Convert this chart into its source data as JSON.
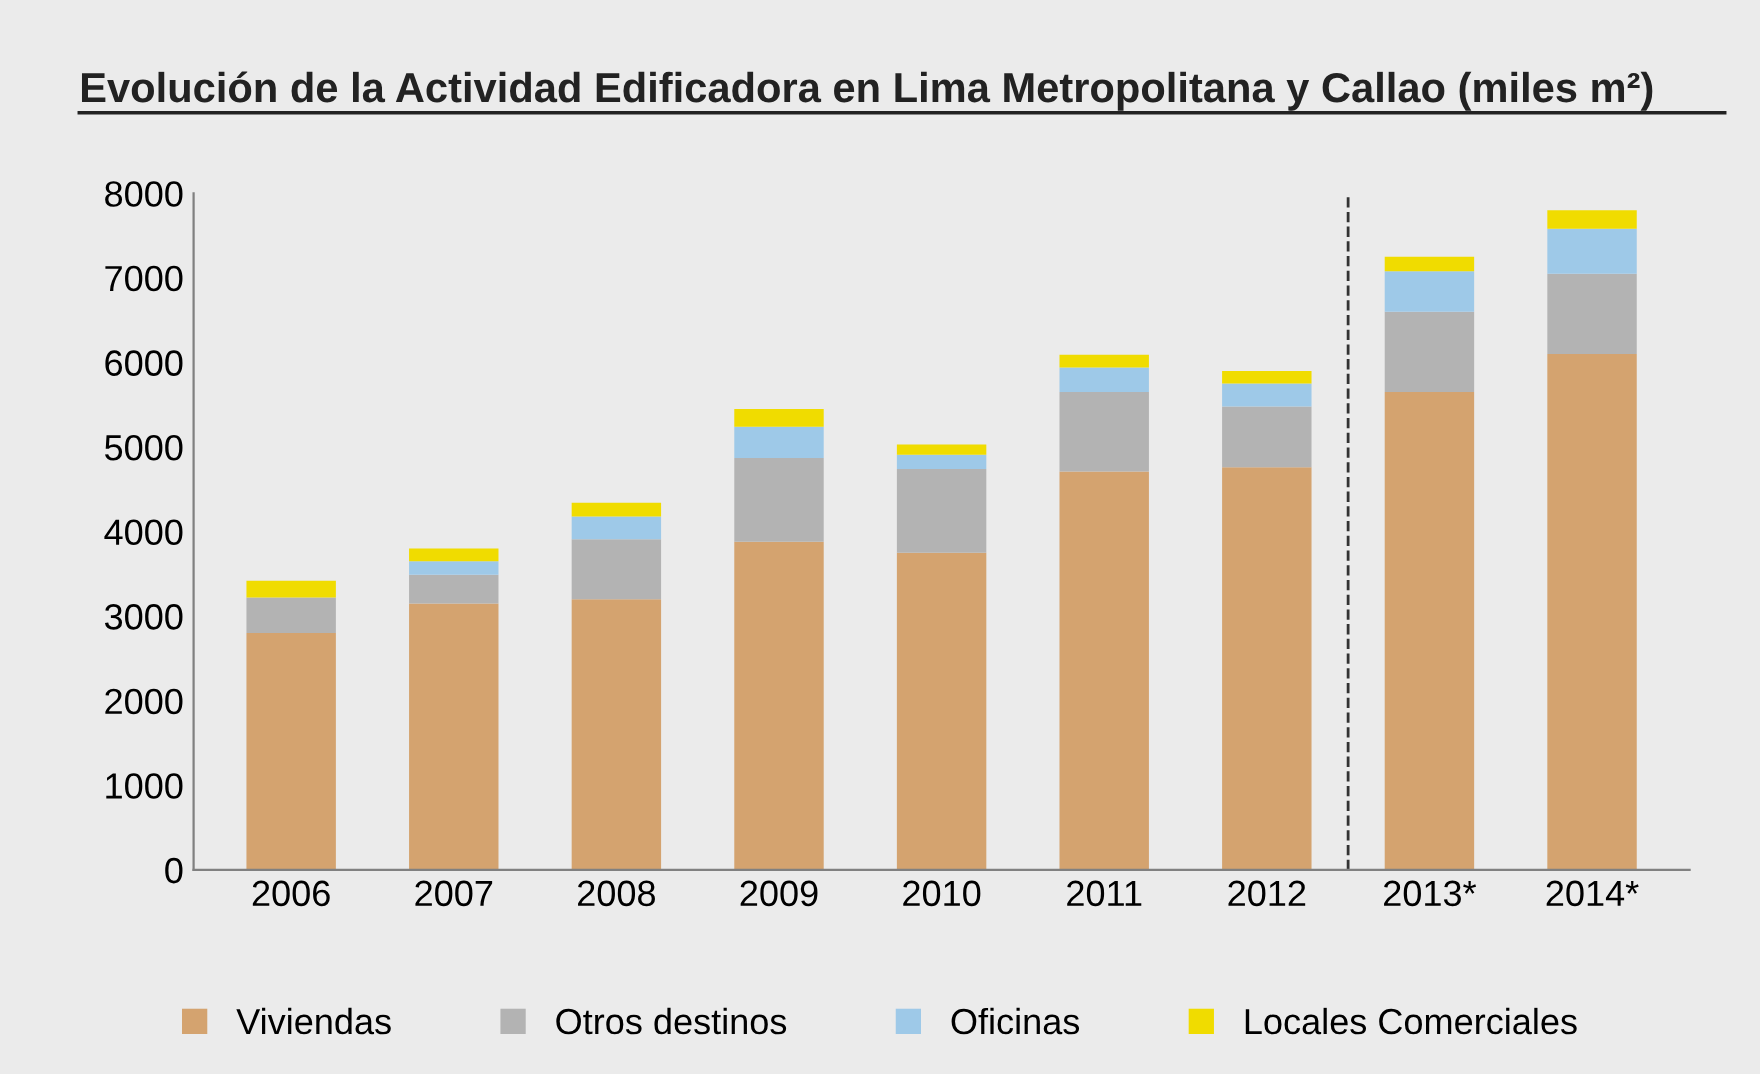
{
  "chart_data": {
    "type": "bar",
    "title": "Evolución de la Actividad Edificadora en Lima Metropolitana y Callao (miles m²)",
    "categories": [
      "2006",
      "2007",
      "2008",
      "2009",
      "2010",
      "2011",
      "2012",
      "2013*",
      "2014*"
    ],
    "stacked": true,
    "series": [
      {
        "name": "Viviendas",
        "color": "#d4a36f",
        "values": [
          2800,
          3150,
          3200,
          3880,
          3750,
          4710,
          4760,
          5650,
          6100
        ]
      },
      {
        "name": "Otros destinos",
        "color": "#b3b3b3",
        "values": [
          420,
          340,
          710,
          990,
          990,
          940,
          720,
          950,
          950
        ]
      },
      {
        "name": "Oficinas",
        "color": "#9ec9e8",
        "values": [
          null,
          160,
          270,
          370,
          170,
          290,
          270,
          480,
          530
        ]
      },
      {
        "name": "Locales Comerciales",
        "color": "#f0dc00",
        "values": [
          200,
          150,
          160,
          210,
          120,
          150,
          150,
          170,
          220
        ]
      }
    ],
    "ylim": [
      0,
      8000
    ],
    "yticks": [
      0,
      1000,
      2000,
      3000,
      4000,
      5000,
      6000,
      7000,
      8000
    ],
    "grid": false,
    "legend": "bottom"
  }
}
